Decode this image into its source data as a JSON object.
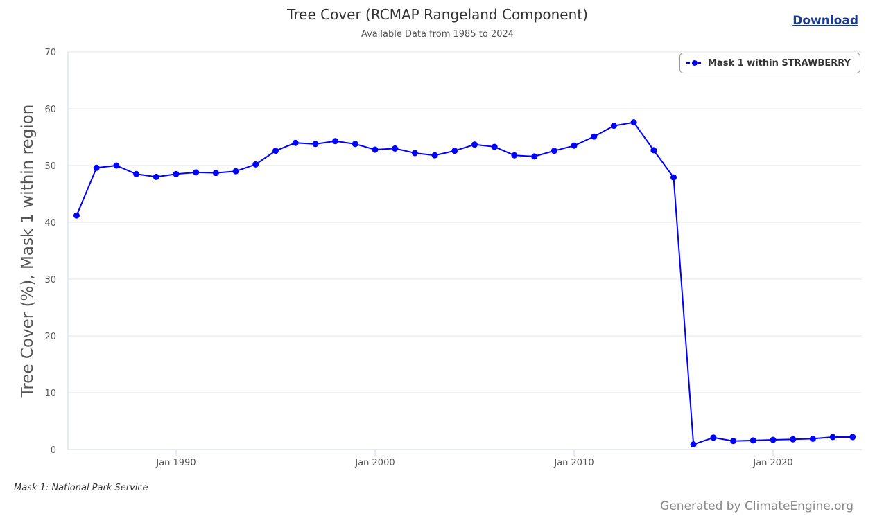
{
  "header": {
    "title": "Tree Cover (RCMAP Rangeland Component)",
    "subtitle": "Available Data from 1985 to 2024",
    "download_label": "Download"
  },
  "footer": {
    "note": "Mask 1: National Park Service",
    "credit": "Generated by ClimateEngine.org"
  },
  "colors": {
    "series": "#0000ff",
    "grid": "#e6e6e6",
    "axis": "#ccd6eb"
  },
  "chart_data": {
    "type": "line",
    "title": "Tree Cover (RCMAP Rangeland Component)",
    "subtitle": "Available Data from 1985 to 2024",
    "xlabel": "",
    "ylabel": "Tree Cover (%), Mask 1 within region",
    "ylim": [
      0,
      70
    ],
    "yticks": [
      0,
      10,
      20,
      30,
      40,
      50,
      60,
      70
    ],
    "xticks": [
      {
        "year": 1990,
        "label": "Jan 1990"
      },
      {
        "year": 2000,
        "label": "Jan 2000"
      },
      {
        "year": 2010,
        "label": "Jan 2010"
      },
      {
        "year": 2020,
        "label": "Jan 2020"
      }
    ],
    "xlim": [
      1984.6,
      2024.5
    ],
    "grid": true,
    "legend_position": "top-right",
    "series": [
      {
        "name": "Mask 1 within STRAWBERRY",
        "x": [
          1985,
          1986,
          1987,
          1988,
          1989,
          1990,
          1991,
          1992,
          1993,
          1994,
          1995,
          1996,
          1997,
          1998,
          1999,
          2000,
          2001,
          2002,
          2003,
          2004,
          2005,
          2006,
          2007,
          2008,
          2009,
          2010,
          2011,
          2012,
          2013,
          2014,
          2015,
          2016,
          2017,
          2018,
          2019,
          2020,
          2021,
          2022,
          2023,
          2024
        ],
        "values": [
          41.2,
          49.6,
          50.0,
          48.5,
          48.0,
          48.5,
          48.8,
          48.7,
          49.0,
          50.2,
          52.6,
          54.0,
          53.8,
          54.3,
          53.8,
          52.8,
          53.0,
          52.2,
          51.8,
          52.6,
          53.7,
          53.3,
          51.8,
          51.6,
          52.6,
          53.5,
          55.1,
          57.0,
          57.6,
          52.7,
          47.9,
          0.9,
          2.1,
          1.5,
          1.6,
          1.7,
          1.8,
          1.9,
          2.2,
          2.2
        ]
      }
    ]
  }
}
